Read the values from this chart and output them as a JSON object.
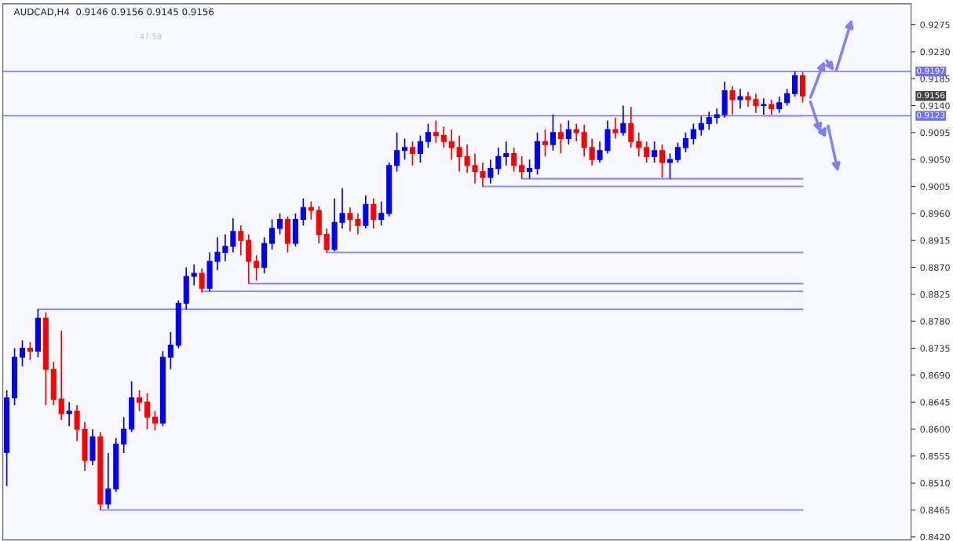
{
  "chart_data": {
    "type": "candlestick",
    "title": "AUDCAD,H4  0.9146 0.9156 0.9145 0.9156",
    "categories": [
      null,
      null,
      null,
      null,
      null,
      null,
      null,
      null,
      null,
      null,
      null,
      null,
      null,
      null,
      null,
      null,
      null,
      null,
      null,
      null,
      null,
      null,
      null,
      null,
      null,
      null,
      null,
      null,
      null,
      null,
      null,
      null,
      null,
      null,
      null,
      null,
      null,
      null,
      null,
      null,
      null,
      null,
      null,
      null,
      null,
      null,
      null,
      null,
      null,
      null,
      null,
      null,
      null,
      null,
      null,
      null,
      null,
      null,
      null,
      null,
      null,
      null,
      null,
      null,
      null,
      null,
      null,
      null,
      null,
      null,
      null,
      null,
      null,
      null,
      null,
      null,
      null,
      null,
      null,
      null,
      null,
      null,
      null,
      null,
      null,
      null,
      null,
      null,
      null,
      null,
      null,
      null,
      null,
      null,
      null,
      null,
      null,
      null,
      null,
      null,
      null,
      null,
      null
    ],
    "ohlc": [
      [
        0.8561,
        0.8665,
        0.8505,
        0.8652
      ],
      [
        0.8652,
        0.8735,
        0.864,
        0.872
      ],
      [
        0.872,
        0.8748,
        0.8705,
        0.8735
      ],
      [
        0.8735,
        0.8745,
        0.8715,
        0.873
      ],
      [
        0.873,
        0.88,
        0.872,
        0.8785
      ],
      [
        0.8785,
        0.8795,
        0.864,
        0.87
      ],
      [
        0.87,
        0.8712,
        0.864,
        0.865
      ],
      [
        0.865,
        0.8764,
        0.8615,
        0.8626
      ],
      [
        0.8626,
        0.8645,
        0.8605,
        0.863
      ],
      [
        0.863,
        0.864,
        0.858,
        0.86
      ],
      [
        0.86,
        0.8612,
        0.853,
        0.8548
      ],
      [
        0.8548,
        0.86,
        0.854,
        0.8587
      ],
      [
        0.8587,
        0.8595,
        0.8465,
        0.8475
      ],
      [
        0.8475,
        0.856,
        0.8467,
        0.85
      ],
      [
        0.85,
        0.8585,
        0.8495,
        0.8575
      ],
      [
        0.8575,
        0.862,
        0.856,
        0.86
      ],
      [
        0.86,
        0.868,
        0.8595,
        0.8652
      ],
      [
        0.8652,
        0.8665,
        0.863,
        0.8645
      ],
      [
        0.8645,
        0.866,
        0.86,
        0.862
      ],
      [
        0.862,
        0.863,
        0.8598,
        0.861
      ],
      [
        0.861,
        0.873,
        0.8605,
        0.872
      ],
      [
        0.872,
        0.8762,
        0.87,
        0.874
      ],
      [
        0.874,
        0.8815,
        0.8735,
        0.881
      ],
      [
        0.881,
        0.887,
        0.88,
        0.8855
      ],
      [
        0.8855,
        0.8875,
        0.884,
        0.886
      ],
      [
        0.886,
        0.8868,
        0.8828,
        0.8835
      ],
      [
        0.8835,
        0.8895,
        0.883,
        0.888
      ],
      [
        0.888,
        0.892,
        0.8865,
        0.8895
      ],
      [
        0.8895,
        0.8925,
        0.888,
        0.8905
      ],
      [
        0.8905,
        0.8952,
        0.8895,
        0.893
      ],
      [
        0.893,
        0.894,
        0.889,
        0.8915
      ],
      [
        0.8915,
        0.8925,
        0.8843,
        0.888
      ],
      [
        0.888,
        0.889,
        0.8848,
        0.887
      ],
      [
        0.887,
        0.892,
        0.886,
        0.891
      ],
      [
        0.891,
        0.895,
        0.89,
        0.8935
      ],
      [
        0.8935,
        0.896,
        0.8925,
        0.895
      ],
      [
        0.895,
        0.8955,
        0.8895,
        0.891
      ],
      [
        0.891,
        0.896,
        0.8905,
        0.895
      ],
      [
        0.895,
        0.8985,
        0.894,
        0.897
      ],
      [
        0.897,
        0.898,
        0.895,
        0.8965
      ],
      [
        0.8965,
        0.8972,
        0.891,
        0.8925
      ],
      [
        0.8925,
        0.8935,
        0.8895,
        0.89
      ],
      [
        0.89,
        0.8985,
        0.8897,
        0.8945
      ],
      [
        0.8945,
        0.9002,
        0.8935,
        0.896
      ],
      [
        0.896,
        0.897,
        0.893,
        0.895
      ],
      [
        0.895,
        0.896,
        0.8925,
        0.894
      ],
      [
        0.894,
        0.899,
        0.8935,
        0.8975
      ],
      [
        0.8975,
        0.8985,
        0.8935,
        0.895
      ],
      [
        0.895,
        0.898,
        0.894,
        0.896
      ],
      [
        0.896,
        0.9045,
        0.8955,
        0.904
      ],
      [
        0.904,
        0.9095,
        0.903,
        0.9065
      ],
      [
        0.9065,
        0.9085,
        0.905,
        0.907
      ],
      [
        0.907,
        0.908,
        0.904,
        0.906
      ],
      [
        0.906,
        0.909,
        0.9045,
        0.908
      ],
      [
        0.908,
        0.911,
        0.907,
        0.9095
      ],
      [
        0.9095,
        0.9115,
        0.9078,
        0.909
      ],
      [
        0.909,
        0.9105,
        0.907,
        0.908
      ],
      [
        0.908,
        0.91,
        0.905,
        0.907
      ],
      [
        0.907,
        0.909,
        0.903,
        0.9055
      ],
      [
        0.9055,
        0.9075,
        0.9028,
        0.904
      ],
      [
        0.904,
        0.906,
        0.901,
        0.903
      ],
      [
        0.903,
        0.9045,
        0.9005,
        0.902
      ],
      [
        0.902,
        0.905,
        0.901,
        0.9035
      ],
      [
        0.9035,
        0.907,
        0.9025,
        0.9055
      ],
      [
        0.9055,
        0.908,
        0.904,
        0.906
      ],
      [
        0.906,
        0.907,
        0.903,
        0.904
      ],
      [
        0.904,
        0.9055,
        0.9018,
        0.903
      ],
      [
        0.903,
        0.905,
        0.9018,
        0.9035
      ],
      [
        0.9035,
        0.9095,
        0.9025,
        0.908
      ],
      [
        0.908,
        0.91,
        0.9055,
        0.9075
      ],
      [
        0.9075,
        0.9125,
        0.9065,
        0.9095
      ],
      [
        0.9095,
        0.911,
        0.906,
        0.9085
      ],
      [
        0.9085,
        0.9115,
        0.9075,
        0.91
      ],
      [
        0.91,
        0.911,
        0.908,
        0.9095
      ],
      [
        0.9095,
        0.9108,
        0.9055,
        0.907
      ],
      [
        0.907,
        0.9085,
        0.904,
        0.905
      ],
      [
        0.905,
        0.908,
        0.9045,
        0.9065
      ],
      [
        0.9065,
        0.9115,
        0.906,
        0.91
      ],
      [
        0.91,
        0.912,
        0.9085,
        0.9095
      ],
      [
        0.9095,
        0.914,
        0.909,
        0.911
      ],
      [
        0.911,
        0.9138,
        0.907,
        0.908
      ],
      [
        0.908,
        0.9095,
        0.9055,
        0.907
      ],
      [
        0.907,
        0.908,
        0.9045,
        0.9055
      ],
      [
        0.9055,
        0.908,
        0.9045,
        0.9065
      ],
      [
        0.9065,
        0.9075,
        0.902,
        0.9045
      ],
      [
        0.9045,
        0.906,
        0.9018,
        0.905
      ],
      [
        0.905,
        0.9078,
        0.9045,
        0.907
      ],
      [
        0.907,
        0.9095,
        0.9062,
        0.9085
      ],
      [
        0.9085,
        0.911,
        0.9075,
        0.91
      ],
      [
        0.91,
        0.9122,
        0.909,
        0.911
      ],
      [
        0.911,
        0.913,
        0.91,
        0.912
      ],
      [
        0.912,
        0.9135,
        0.911,
        0.9125
      ],
      [
        0.9125,
        0.918,
        0.912,
        0.9165
      ],
      [
        0.9165,
        0.9172,
        0.9125,
        0.915
      ],
      [
        0.915,
        0.9168,
        0.9135,
        0.9155
      ],
      [
        0.9155,
        0.9163,
        0.9138,
        0.915
      ],
      [
        0.915,
        0.916,
        0.9128,
        0.914
      ],
      [
        0.914,
        0.9152,
        0.9125,
        0.9142
      ],
      [
        0.9142,
        0.915,
        0.9125,
        0.9135
      ],
      [
        0.9135,
        0.9155,
        0.9128,
        0.9145
      ],
      [
        0.9145,
        0.9168,
        0.914,
        0.916
      ],
      [
        0.916,
        0.9197,
        0.9155,
        0.919
      ],
      [
        0.919,
        0.9196,
        0.9145,
        0.9156
      ]
    ],
    "colors": [
      "#0000ff",
      "#0000ff",
      "#0000ff",
      "#ff0000",
      "#0000ff",
      "#ff0000",
      "#ff0000",
      "#ff0000",
      "#0000ff",
      "#ff0000",
      "#ff0000",
      "#0000ff",
      "#ff0000",
      "#0000ff",
      "#0000ff",
      "#0000ff",
      "#0000ff",
      "#ff0000",
      "#ff0000",
      "#ff0000",
      "#0000ff",
      "#0000ff",
      "#0000ff",
      "#0000ff",
      "#0000ff",
      "#ff0000",
      "#0000ff",
      "#0000ff",
      "#0000ff",
      "#0000ff",
      "#ff0000",
      "#ff0000",
      "#ff0000",
      "#0000ff",
      "#0000ff",
      "#0000ff",
      "#ff0000",
      "#0000ff",
      "#0000ff",
      "#ff0000",
      "#ff0000",
      "#ff0000",
      "#0000ff",
      "#0000ff",
      "#ff0000",
      "#ff0000",
      "#0000ff",
      "#ff0000",
      "#0000ff",
      "#0000ff",
      "#0000ff",
      "#0000ff",
      "#ff0000",
      "#0000ff",
      "#0000ff",
      "#ff0000",
      "#ff0000",
      "#ff0000",
      "#ff0000",
      "#ff0000",
      "#ff0000",
      "#ff0000",
      "#0000ff",
      "#0000ff",
      "#0000ff",
      "#ff0000",
      "#ff0000",
      "#0000ff",
      "#0000ff",
      "#ff0000",
      "#0000ff",
      "#ff0000",
      "#0000ff",
      "#ff0000",
      "#ff0000",
      "#ff0000",
      "#0000ff",
      "#0000ff",
      "#ff0000",
      "#0000ff",
      "#ff0000",
      "#ff0000",
      "#ff0000",
      "#0000ff",
      "#ff0000",
      "#0000ff",
      "#0000ff",
      "#0000ff",
      "#0000ff",
      "#0000ff",
      "#0000ff",
      "#0000ff",
      "#0000ff",
      "#ff0000",
      "#0000ff",
      "#ff0000",
      "#ff0000",
      "#0000ff",
      "#ff0000",
      "#0000ff",
      "#0000ff",
      "#0000ff",
      "#ff0000"
    ],
    "series": [
      {
        "type": "line",
        "color": "#8c8cff",
        "values": [
          null,
          null,
          null,
          null,
          0.88,
          0.88,
          0.88,
          0.88,
          0.88,
          0.88,
          0.88,
          0.88,
          0.88,
          0.88,
          0.88,
          0.88,
          0.88,
          0.88,
          0.88,
          0.88,
          0.88,
          0.88,
          0.88,
          0.88,
          0.88,
          0.88,
          0.88,
          0.88,
          0.88,
          0.88,
          0.88,
          0.88,
          0.88,
          0.88,
          0.88,
          0.88,
          0.88,
          0.88,
          0.88,
          0.88,
          0.88,
          0.88,
          0.88,
          0.88,
          0.88,
          0.88,
          0.88,
          0.88,
          0.88,
          0.88,
          0.88,
          0.88,
          0.88,
          0.88,
          0.88,
          0.88,
          0.88,
          0.88,
          0.88,
          0.88,
          0.88,
          0.88,
          0.88,
          0.88,
          0.88,
          0.88,
          0.88,
          0.88,
          0.88,
          0.88,
          0.88,
          0.88,
          0.88,
          0.88,
          0.88,
          0.88,
          0.88,
          0.88,
          0.88,
          0.88,
          0.88,
          0.88,
          0.88,
          0.88,
          0.88,
          0.88,
          0.88,
          0.88,
          0.88,
          0.88,
          0.88,
          0.88,
          0.88,
          0.88,
          0.88,
          0.88,
          0.88,
          0.88,
          0.88,
          0.88,
          0.88,
          0.88,
          0.88
        ]
      },
      {
        "type": "line",
        "color": "#8c8cff",
        "values": [
          null,
          null,
          null,
          null,
          null,
          null,
          null,
          null,
          null,
          null,
          null,
          null,
          0.8465,
          0.8465,
          0.8465,
          0.8465,
          0.8465,
          0.8465,
          0.8465,
          0.8465,
          0.8465,
          0.8465,
          0.8465,
          0.8465,
          0.8465,
          0.8465,
          0.8465,
          0.8465,
          0.8465,
          0.8465,
          0.8465,
          0.8465,
          0.8465,
          0.8465,
          0.8465,
          0.8465,
          0.8465,
          0.8465,
          0.8465,
          0.8465,
          0.8465,
          0.8465,
          0.8465,
          0.8465,
          0.8465,
          0.8465,
          0.8465,
          0.8465,
          0.8465,
          0.8465,
          0.8465,
          0.8465,
          0.8465,
          0.8465,
          0.8465,
          0.8465,
          0.8465,
          0.8465,
          0.8465,
          0.8465,
          0.8465,
          0.8465,
          0.8465,
          0.8465,
          0.8465,
          0.8465,
          0.8465,
          0.8465,
          0.8465,
          0.8465,
          0.8465,
          0.8465,
          0.8465,
          0.8465,
          0.8465,
          0.8465,
          0.8465,
          0.8465,
          0.8465,
          0.8465,
          0.8465,
          0.8465,
          0.8465,
          0.8465,
          0.8465,
          0.8465,
          0.8465,
          0.8465,
          0.8465,
          0.8465,
          0.8465,
          0.8465,
          0.8465,
          0.8465,
          0.8465,
          0.8465,
          0.8465,
          0.8465,
          0.8465,
          0.8465,
          0.8465,
          0.8465,
          0.8465
        ]
      },
      {
        "type": "line",
        "color": "#8c8cff",
        "values": [
          null,
          null,
          null,
          null,
          null,
          null,
          null,
          null,
          null,
          null,
          null,
          null,
          null,
          null,
          null,
          null,
          null,
          null,
          null,
          null,
          null,
          null,
          null,
          null,
          null,
          0.883,
          0.883,
          0.883,
          0.883,
          0.883,
          0.883,
          0.883,
          0.883,
          0.883,
          0.883,
          0.883,
          0.883,
          0.883,
          0.883,
          0.883,
          0.883,
          0.883,
          0.883,
          0.883,
          0.883,
          0.883,
          0.883,
          0.883,
          0.883,
          0.883,
          0.883,
          0.883,
          0.883,
          0.883,
          0.883,
          0.883,
          0.883,
          0.883,
          0.883,
          0.883,
          0.883,
          0.883,
          0.883,
          0.883,
          0.883,
          0.883,
          0.883,
          0.883,
          0.883,
          0.883,
          0.883,
          0.883,
          0.883,
          0.883,
          0.883,
          0.883,
          0.883,
          0.883,
          0.883,
          0.883,
          0.883,
          0.883,
          0.883,
          0.883,
          0.883,
          0.883,
          0.883,
          0.883,
          0.883,
          0.883,
          0.883,
          0.883,
          0.883,
          0.883,
          0.883,
          0.883,
          0.883,
          0.883,
          0.883,
          0.883,
          0.883,
          0.883,
          0.883
        ]
      },
      {
        "type": "line",
        "color": "#8c8cff",
        "values": [
          null,
          null,
          null,
          null,
          null,
          null,
          null,
          null,
          null,
          null,
          null,
          null,
          null,
          null,
          null,
          null,
          null,
          null,
          null,
          null,
          null,
          null,
          null,
          null,
          null,
          null,
          null,
          null,
          null,
          null,
          null,
          0.8843,
          0.8843,
          0.8843,
          0.8843,
          0.8843,
          0.8843,
          0.8843,
          0.8843,
          0.8843,
          0.8843,
          0.8843,
          0.8843,
          0.8843,
          0.8843,
          0.8843,
          0.8843,
          0.8843,
          0.8843,
          0.8843,
          0.8843,
          0.8843,
          0.8843,
          0.8843,
          0.8843,
          0.8843,
          0.8843,
          0.8843,
          0.8843,
          0.8843,
          0.8843,
          0.8843,
          0.8843,
          0.8843,
          0.8843,
          0.8843,
          0.8843,
          0.8843,
          0.8843,
          0.8843,
          0.8843,
          0.8843,
          0.8843,
          0.8843,
          0.8843,
          0.8843,
          0.8843,
          0.8843,
          0.8843,
          0.8843,
          0.8843,
          0.8843,
          0.8843,
          0.8843,
          0.8843,
          0.8843,
          0.8843,
          0.8843,
          0.8843,
          0.8843,
          0.8843,
          0.8843,
          0.8843,
          0.8843,
          0.8843,
          0.8843,
          0.8843,
          0.8843,
          0.8843,
          0.8843,
          0.8843,
          0.8843,
          0.8843
        ]
      },
      {
        "type": "line",
        "color": "#8c8cff",
        "values": [
          null,
          null,
          null,
          null,
          null,
          null,
          null,
          null,
          null,
          null,
          null,
          null,
          null,
          null,
          null,
          null,
          null,
          null,
          null,
          null,
          null,
          null,
          null,
          null,
          null,
          null,
          null,
          null,
          null,
          null,
          null,
          null,
          null,
          null,
          null,
          null,
          null,
          null,
          null,
          null,
          null,
          0.8895,
          0.8895,
          0.8895,
          0.8895,
          0.8895,
          0.8895,
          0.8895,
          0.8895,
          0.8895,
          0.8895,
          0.8895,
          0.8895,
          0.8895,
          0.8895,
          0.8895,
          0.8895,
          0.8895,
          0.8895,
          0.8895,
          0.8895,
          0.8895,
          0.8895,
          0.8895,
          0.8895,
          0.8895,
          0.8895,
          0.8895,
          0.8895,
          0.8895,
          0.8895,
          0.8895,
          0.8895,
          0.8895,
          0.8895,
          0.8895,
          0.8895,
          0.8895,
          0.8895,
          0.8895,
          0.8895,
          0.8895,
          0.8895,
          0.8895,
          0.8895,
          0.8895,
          0.8895,
          0.8895,
          0.8895,
          0.8895,
          0.8895,
          0.8895,
          0.8895,
          0.8895,
          0.8895,
          0.8895,
          0.8895,
          0.8895,
          0.8895,
          0.8895,
          0.8895,
          0.8895,
          0.8895
        ]
      },
      {
        "type": "line",
        "color": "#8c8cff",
        "values": [
          null,
          null,
          null,
          null,
          null,
          null,
          null,
          null,
          null,
          null,
          null,
          null,
          null,
          null,
          null,
          null,
          null,
          null,
          null,
          null,
          null,
          null,
          null,
          null,
          null,
          null,
          null,
          null,
          null,
          null,
          null,
          null,
          null,
          null,
          null,
          null,
          null,
          null,
          null,
          null,
          null,
          null,
          null,
          null,
          null,
          null,
          null,
          null,
          null,
          null,
          null,
          null,
          null,
          null,
          null,
          null,
          null,
          null,
          null,
          null,
          null,
          0.9005,
          0.9005,
          0.9005,
          0.9005,
          0.9005,
          0.9005,
          0.9005,
          0.9005,
          0.9005,
          0.9005,
          0.9005,
          0.9005,
          0.9005,
          0.9005,
          0.9005,
          0.9005,
          0.9005,
          0.9005,
          0.9005,
          0.9005,
          0.9005,
          0.9005,
          0.9005,
          0.9005,
          0.9005,
          0.9005,
          0.9005,
          0.9005,
          0.9005,
          0.9005,
          0.9005,
          0.9005,
          0.9005,
          0.9005,
          0.9005,
          0.9005,
          0.9005,
          0.9005,
          0.9005,
          0.9005,
          0.9005,
          0.9005
        ]
      },
      {
        "type": "line",
        "color": "#8c8cff",
        "values": [
          null,
          null,
          null,
          null,
          null,
          null,
          null,
          null,
          null,
          null,
          null,
          null,
          null,
          null,
          null,
          null,
          null,
          null,
          null,
          null,
          null,
          null,
          null,
          null,
          null,
          null,
          null,
          null,
          null,
          null,
          null,
          null,
          null,
          null,
          null,
          null,
          null,
          null,
          null,
          null,
          null,
          null,
          null,
          null,
          null,
          null,
          null,
          null,
          null,
          null,
          null,
          null,
          null,
          null,
          null,
          null,
          null,
          null,
          null,
          null,
          null,
          null,
          null,
          null,
          null,
          null,
          0.9018,
          0.9018,
          0.9018,
          0.9018,
          0.9018,
          0.9018,
          0.9018,
          0.9018,
          0.9018,
          0.9018,
          0.9018,
          0.9018,
          0.9018,
          0.9018,
          0.9018,
          0.9018,
          0.9018,
          0.9018,
          0.9018,
          0.9018,
          0.9018,
          0.9018,
          0.9018,
          0.9018,
          0.9018,
          0.9018,
          0.9018,
          0.9018,
          0.9018,
          0.9018,
          0.9018,
          0.9018,
          0.9018,
          0.9018,
          0.9018,
          0.9018,
          0.9018
        ]
      },
      {
        "type": "line",
        "color": "#8c8cff",
        "values": [
          null,
          null,
          null,
          null,
          null,
          null,
          null,
          null,
          null,
          null,
          null,
          null,
          null,
          null,
          null,
          null,
          null,
          null,
          null,
          null,
          null,
          null,
          null,
          null,
          null,
          null,
          null,
          null,
          null,
          null,
          null,
          null,
          null,
          null,
          null,
          null,
          null,
          null,
          null,
          null,
          null,
          null,
          null,
          null,
          null,
          null,
          null,
          null,
          null,
          null,
          null,
          null,
          null,
          null,
          null,
          null,
          null,
          null,
          null,
          null,
          null,
          null,
          null,
          null,
          null,
          null,
          null,
          null,
          null,
          null,
          null,
          null,
          null,
          null,
          null,
          null,
          null,
          null,
          null,
          null,
          null,
          null,
          null,
          null,
          null,
          null,
          null,
          null,
          null,
          null,
          null,
          null,
          null,
          null,
          null,
          null,
          null,
          0.9123,
          0.9123,
          0.9123,
          0.9123,
          0.9123,
          0.9123
        ]
      }
    ],
    "ref_lines": [
      {
        "axis": "y",
        "value": 0.9197,
        "label": "0.9197",
        "color": "#7070ff"
      },
      {
        "axis": "y",
        "value": 0.9123,
        "label": "0.9123",
        "color": "#7070ff"
      }
    ],
    "annotations": [
      "- 47:58",
      "0.9156"
    ],
    "ylim": [
      0.8415,
      0.931
    ],
    "yticks": [
      {
        "value": 0.842,
        "label": "0.8420"
      },
      {
        "value": 0.8465,
        "label": "0.8465"
      },
      {
        "value": 0.851,
        "label": "0.8510"
      },
      {
        "value": 0.8555,
        "label": "0.8555"
      },
      {
        "value": 0.86,
        "label": "0.8600"
      },
      {
        "value": 0.8645,
        "label": "0.8645"
      },
      {
        "value": 0.869,
        "label": "0.8690"
      },
      {
        "value": 0.8735,
        "label": "0.8735"
      },
      {
        "value": 0.878,
        "label": "0.8780"
      },
      {
        "value": 0.8825,
        "label": "0.8825"
      },
      {
        "value": 0.887,
        "label": "0.8870"
      },
      {
        "value": 0.8915,
        "label": "0.8915"
      },
      {
        "value": 0.896,
        "label": "0.8960"
      },
      {
        "value": 0.9005,
        "label": "0.9005"
      },
      {
        "value": 0.905,
        "label": "0.9050"
      },
      {
        "value": 0.9095,
        "label": "0.9095"
      },
      {
        "value": 0.914,
        "label": "0.9140"
      },
      {
        "value": 0.9185,
        "label": "0.9185"
      },
      {
        "value": 0.923,
        "label": "0.9230"
      },
      {
        "value": 0.9275,
        "label": "0.9275"
      }
    ],
    "tick_labels": "y",
    "grid": false
  }
}
